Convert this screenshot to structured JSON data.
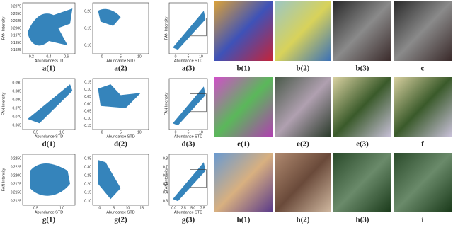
{
  "rows": [
    {
      "plots": [
        {
          "caption": "a(1)",
          "xlabel": "Abundance STD",
          "ylabel": "FAN Intensity",
          "xticks": [
            "0.2",
            "0.4",
            "0.6"
          ],
          "yticks": [
            "0.2075",
            "0.2050",
            "0.2025",
            "0.2000",
            "0.1975",
            "0.1950",
            "0.1925"
          ]
        },
        {
          "caption": "a(2)",
          "xlabel": "Abundance STD",
          "xticks": [
            "0",
            "5",
            "10"
          ],
          "yticks": [
            "0.20",
            "0.15",
            "0.10"
          ]
        },
        {
          "caption": "a(3)",
          "xlabel": "Abundance STD",
          "ylabel": "FAN Intensity",
          "xticks": [
            "0",
            "5",
            "10"
          ],
          "yticks": []
        }
      ],
      "images": [
        {
          "caption": "b(1)"
        },
        {
          "caption": "b(2)"
        },
        {
          "caption": "b(3)"
        },
        {
          "caption": "c"
        }
      ]
    },
    {
      "plots": [
        {
          "caption": "d(1)",
          "xlabel": "Abundance STD",
          "ylabel": "FAN Intensity",
          "xticks": [
            "0.5",
            "1.0"
          ],
          "yticks": [
            "0.090",
            "0.085",
            "0.080",
            "0.075",
            "0.070",
            "0.065"
          ]
        },
        {
          "caption": "d(2)",
          "xlabel": "Abundance STD",
          "xticks": [
            "0",
            "5",
            "10"
          ],
          "yticks": [
            "0.15",
            "0.10",
            "0.05",
            "0.00",
            "-0.05",
            "-0.10",
            "-0.15"
          ]
        },
        {
          "caption": "d(3)",
          "xlabel": "Abundance STD",
          "ylabel": "FAN Intensity",
          "xticks": [
            "0",
            "5",
            "10"
          ],
          "yticks": []
        }
      ],
      "images": [
        {
          "caption": "e(1)"
        },
        {
          "caption": "e(2)"
        },
        {
          "caption": "e(3)"
        },
        {
          "caption": "f"
        }
      ]
    },
    {
      "plots": [
        {
          "caption": "g(1)",
          "xlabel": "Abundance STD",
          "ylabel": "FAN Intensity",
          "xticks": [
            "0.5",
            "1.0"
          ],
          "yticks": [
            "0.2250",
            "0.2225",
            "0.2200",
            "0.2175",
            "0.2150",
            "0.2125"
          ]
        },
        {
          "caption": "g(2)",
          "xlabel": "Abundance STD",
          "xticks": [
            "0",
            "5",
            "10",
            "15"
          ],
          "yticks": [
            "0.35",
            "0.30",
            "0.25",
            "0.20",
            "0.15",
            "0.10"
          ]
        },
        {
          "caption": "g(3)",
          "xlabel": "Abundance STD",
          "ylabel": "FAN Intensity",
          "xticks": [
            "0.0",
            "2.5",
            "5.0",
            "7.5"
          ],
          "yticks": [
            "0.8",
            "0.7",
            "0.6",
            "0.5",
            "0.4",
            "0.3"
          ]
        }
      ],
      "images": [
        {
          "caption": "h(1)"
        },
        {
          "caption": "h(2)"
        },
        {
          "caption": "h(3)"
        },
        {
          "caption": "i"
        }
      ]
    }
  ]
}
